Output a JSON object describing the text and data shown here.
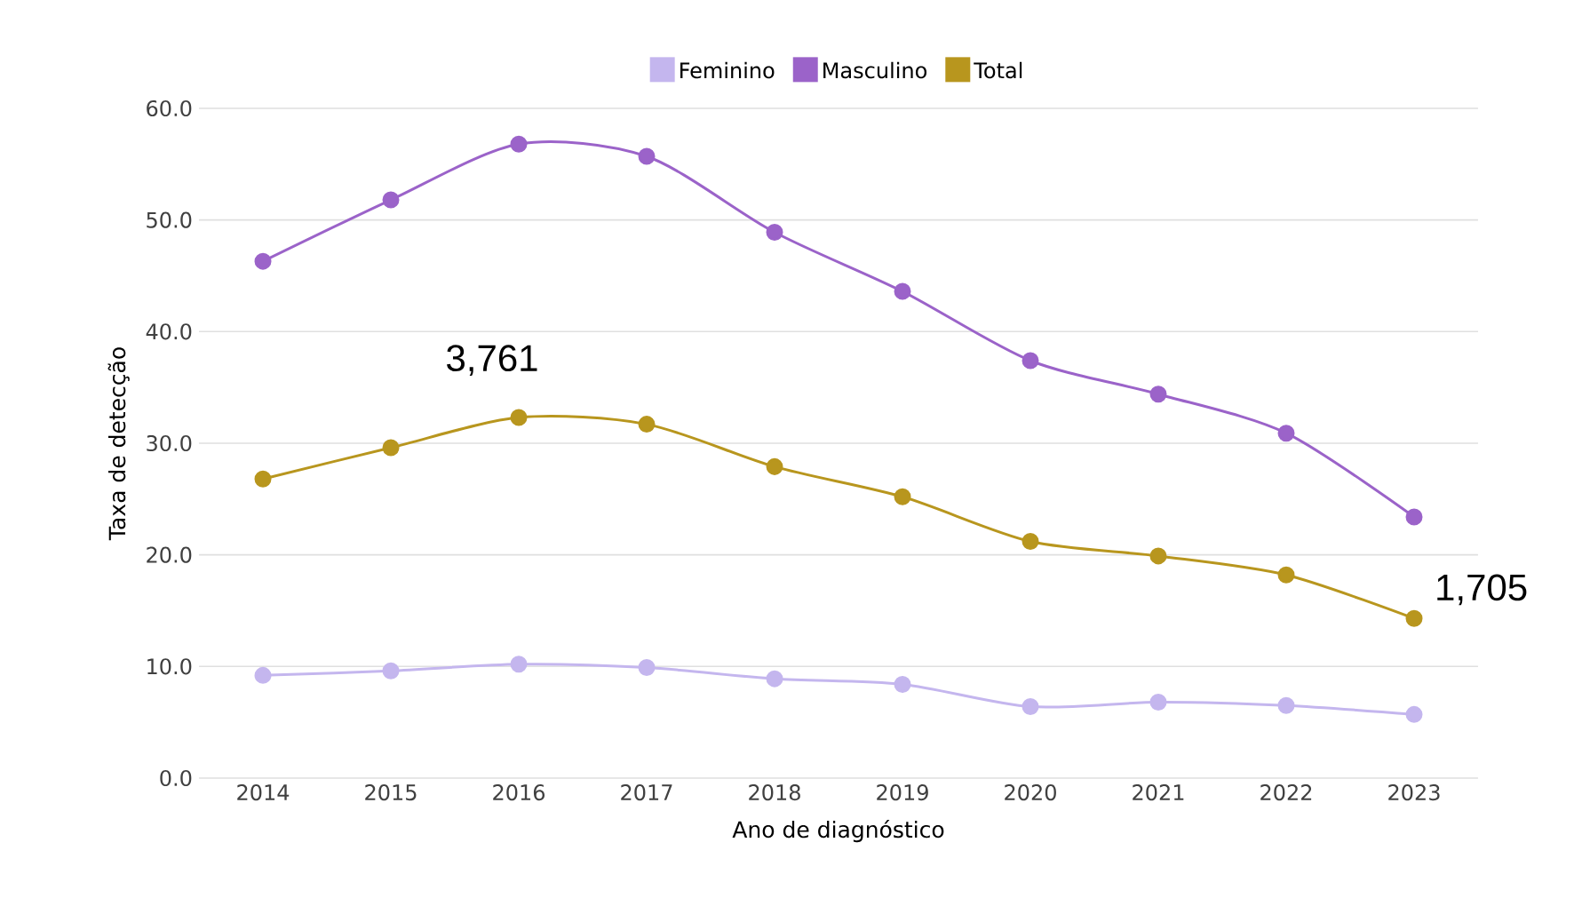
{
  "chart_data": {
    "type": "line",
    "xlabel": "Ano de diagnóstico",
    "ylabel": "Taxa de detecção",
    "categories": [
      "2014",
      "2015",
      "2016",
      "2017",
      "2018",
      "2019",
      "2020",
      "2021",
      "2022",
      "2023"
    ],
    "series": [
      {
        "name": "Feminino",
        "color": "#c4b6ee",
        "values": [
          9.2,
          9.6,
          10.2,
          9.9,
          8.9,
          8.4,
          6.4,
          6.8,
          6.5,
          5.7
        ]
      },
      {
        "name": "Masculino",
        "color": "#9b63c9",
        "values": [
          46.3,
          51.8,
          56.8,
          55.7,
          48.9,
          43.6,
          37.4,
          34.4,
          30.9,
          23.4
        ]
      },
      {
        "name": "Total",
        "color": "#b8961e",
        "values": [
          26.8,
          29.6,
          32.3,
          31.7,
          27.9,
          25.2,
          21.2,
          19.9,
          18.2,
          14.3
        ]
      }
    ],
    "ylim": [
      0,
      60
    ],
    "yticks": [
      {
        "value": 0,
        "label": "0.0"
      },
      {
        "value": 10,
        "label": "10.0"
      },
      {
        "value": 20,
        "label": "20.0"
      },
      {
        "value": 30,
        "label": "30.0"
      },
      {
        "value": 40,
        "label": "40.0"
      },
      {
        "value": 50,
        "label": "50.0"
      },
      {
        "value": 60,
        "label": "60.0"
      }
    ],
    "grid": "y",
    "legend": "top",
    "marker": "circle",
    "line_style": "solid",
    "annotations": [
      {
        "text": "3,761",
        "x": "2016",
        "y": 32.3
      },
      {
        "text": "1,705",
        "x": "2023",
        "y": 14.3
      }
    ]
  }
}
